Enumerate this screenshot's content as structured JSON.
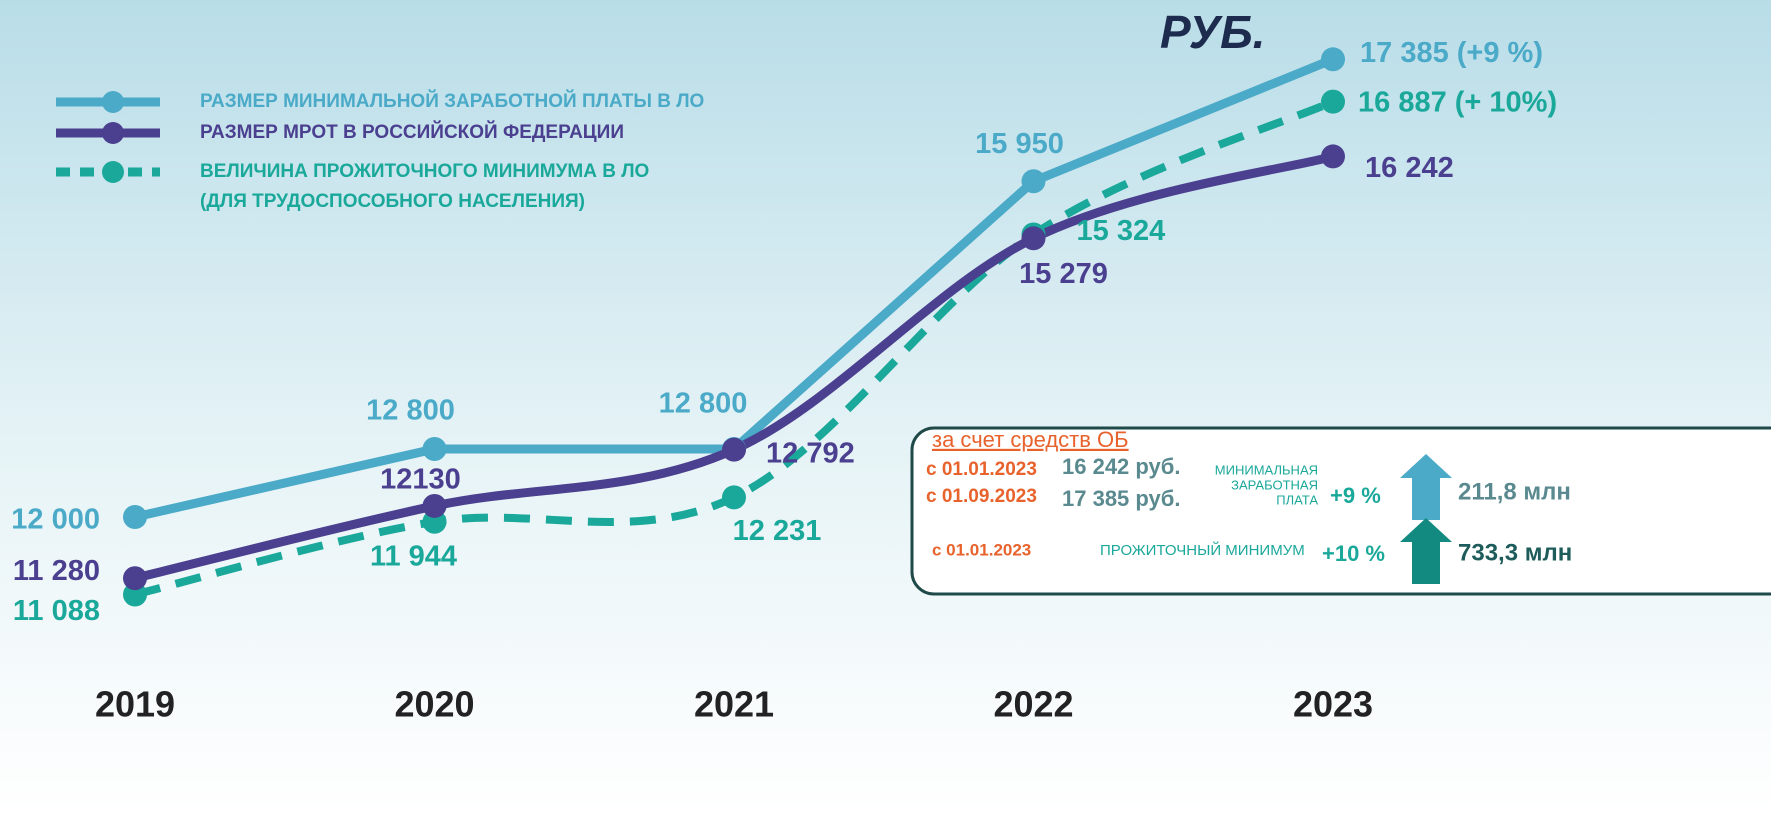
{
  "chart_data": {
    "type": "line",
    "unit_label": "РУБ.",
    "categories": [
      "2019",
      "2020",
      "2021",
      "2022",
      "2023"
    ],
    "ylim": [
      10000,
      18000
    ],
    "series": [
      {
        "name": "РАЗМЕР МИНИМАЛЬНОЙ ЗАРАБОТНОЙ ПЛАТЫ В ЛО",
        "color": "#4aaac8",
        "line_style": "solid",
        "smooth": false,
        "values": [
          12000,
          12800,
          12800,
          15950,
          17385
        ],
        "value_labels": [
          "12 000",
          "12 800",
          "12 800",
          "15 950",
          "17 385 (+9 %)"
        ]
      },
      {
        "name": "РАЗМЕР МРОТ В РОССИЙСКОЙ ФЕДЕРАЦИИ",
        "color": "#4b3f8f",
        "line_style": "solid",
        "smooth": true,
        "values": [
          11280,
          12130,
          12792,
          15279,
          16242
        ],
        "value_labels": [
          "11 280",
          "12130",
          "12 792",
          "15 279",
          "16 242"
        ]
      },
      {
        "name": "ВЕЛИЧИНА ПРОЖИТОЧНОГО МИНИМУМА В ЛО",
        "name_line2": "(ДЛЯ ТРУДОСПОСОБНОГО НАСЕЛЕНИЯ)",
        "color": "#1aa89a",
        "line_style": "dashed",
        "smooth": true,
        "values": [
          11088,
          11944,
          12231,
          15324,
          16887
        ],
        "value_labels": [
          "11 088",
          "11 944",
          "12 231",
          "15 324",
          "16 887 (+ 10%)"
        ]
      }
    ],
    "note": {
      "title": "за счет средств ОБ",
      "date1": "с 01.01.2023",
      "amount1": "16 242 руб.",
      "date2": "с 01.09.2023",
      "amount2": "17 385 руб.",
      "wage_label": [
        "МИНИМАЛЬНАЯ",
        "ЗАРАБОТНАЯ",
        "ПЛАТА"
      ],
      "wage_pct": "+9 %",
      "wage_sum": "211,8 млн",
      "date3": "с 01.01.2023",
      "min_label": "ПРОЖИТОЧНЫЙ  МИНИМУМ",
      "min_pct": "+10 %",
      "min_sum": "733,3 млн"
    }
  }
}
